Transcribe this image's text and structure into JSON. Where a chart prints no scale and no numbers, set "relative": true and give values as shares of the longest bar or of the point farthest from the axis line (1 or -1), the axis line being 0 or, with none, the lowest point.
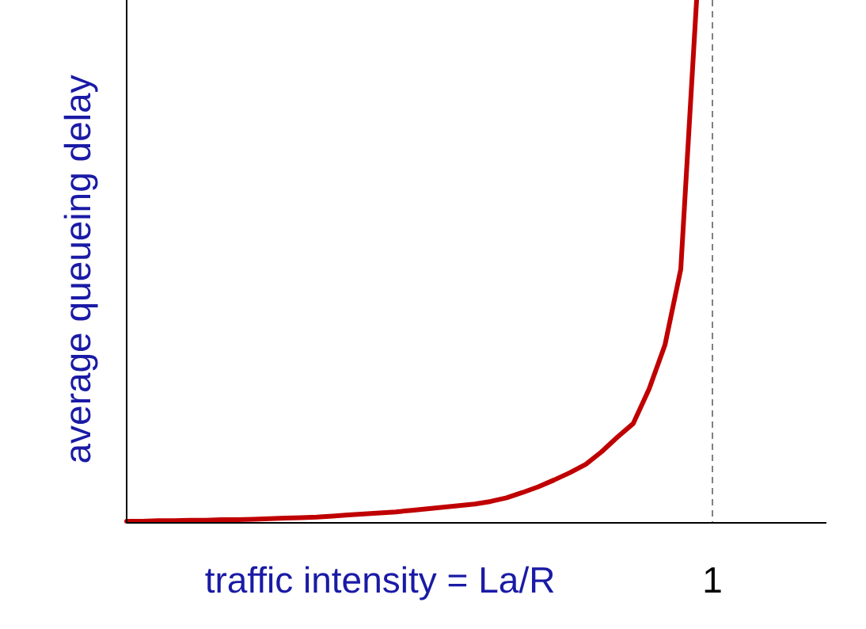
{
  "chart_data": {
    "type": "line",
    "xlabel": "traffic intensity = La/R",
    "ylabel": "average  queueing delay",
    "relative": true,
    "marker": "none",
    "line_style": "solid",
    "categories": [
      null,
      null,
      null,
      null,
      null,
      null,
      null,
      null,
      null,
      null,
      null,
      null,
      null,
      null,
      null,
      null,
      null,
      null,
      null,
      null,
      null,
      null,
      null,
      null,
      null,
      null,
      null,
      null,
      null,
      null,
      null,
      null,
      null,
      null,
      null,
      null,
      null,
      null,
      null,
      null,
      null,
      null,
      null,
      null,
      null
    ],
    "annotations": [
      "1"
    ],
    "series": [
      {
        "color": "#c00000",
        "values": [
          0.003,
          0.003,
          0.004,
          0.004,
          0.005,
          0.005,
          0.006,
          0.006,
          0.007,
          0.008,
          0.009,
          0.01,
          0.011,
          0.013,
          0.015,
          0.017,
          0.019,
          0.021,
          0.024,
          0.027,
          0.03,
          0.033,
          0.036,
          0.041,
          0.048,
          0.058,
          0.069,
          0.082,
          0.096,
          0.112,
          0.136,
          0.164,
          0.19,
          0.256,
          0.34,
          0.485,
          1,
          null,
          null,
          null,
          null,
          null,
          null,
          null,
          null
        ]
      }
    ]
  }
}
